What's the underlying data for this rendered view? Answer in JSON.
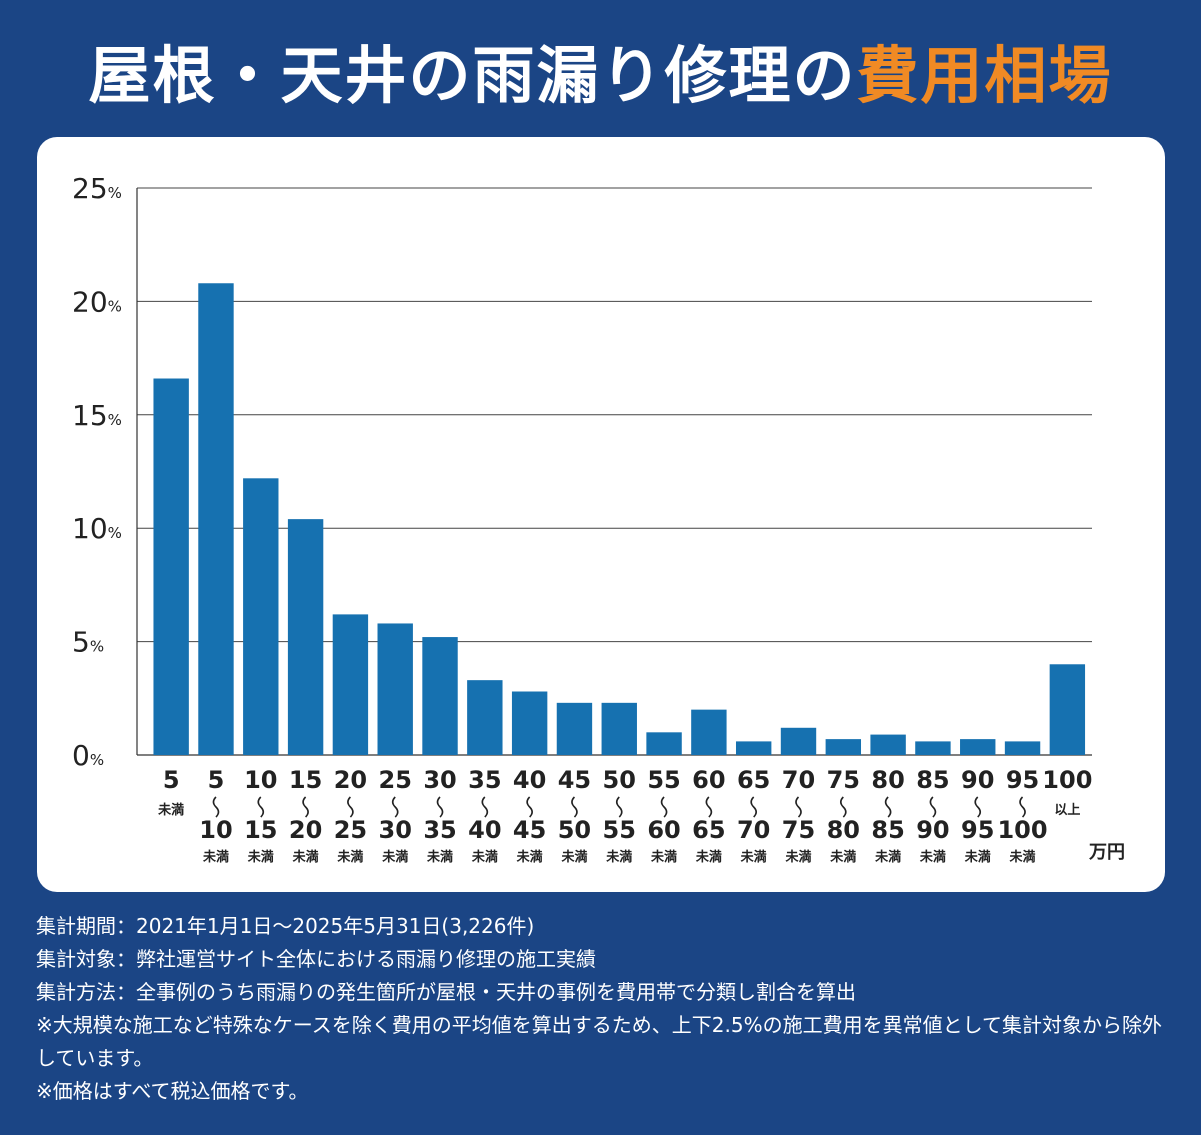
{
  "title": {
    "main": "屋根・天井の雨漏り修理の",
    "accent": "費用相場"
  },
  "colors": {
    "background": "#1b4585",
    "bar": "#1671b0",
    "accent": "#f08a24",
    "text": "#222222"
  },
  "chart_data": {
    "type": "bar",
    "ylim": [
      0,
      25
    ],
    "y_ticks": [
      0,
      5,
      10,
      15,
      20,
      25
    ],
    "y_tick_suffix": "%",
    "x_unit": "万円",
    "grid": true,
    "categories": [
      {
        "lower": "",
        "upper": "5",
        "upper_note": "未満"
      },
      {
        "lower": "5",
        "upper": "10",
        "upper_note": "未満"
      },
      {
        "lower": "10",
        "upper": "15",
        "upper_note": "未満"
      },
      {
        "lower": "15",
        "upper": "20",
        "upper_note": "未満"
      },
      {
        "lower": "20",
        "upper": "25",
        "upper_note": "未満"
      },
      {
        "lower": "25",
        "upper": "30",
        "upper_note": "未満"
      },
      {
        "lower": "30",
        "upper": "35",
        "upper_note": "未満"
      },
      {
        "lower": "35",
        "upper": "40",
        "upper_note": "未満"
      },
      {
        "lower": "40",
        "upper": "45",
        "upper_note": "未満"
      },
      {
        "lower": "45",
        "upper": "50",
        "upper_note": "未満"
      },
      {
        "lower": "50",
        "upper": "55",
        "upper_note": "未満"
      },
      {
        "lower": "55",
        "upper": "60",
        "upper_note": "未満"
      },
      {
        "lower": "60",
        "upper": "65",
        "upper_note": "未満"
      },
      {
        "lower": "65",
        "upper": "70",
        "upper_note": "未満"
      },
      {
        "lower": "70",
        "upper": "75",
        "upper_note": "未満"
      },
      {
        "lower": "75",
        "upper": "80",
        "upper_note": "未満"
      },
      {
        "lower": "80",
        "upper": "85",
        "upper_note": "未満"
      },
      {
        "lower": "85",
        "upper": "90",
        "upper_note": "未満"
      },
      {
        "lower": "90",
        "upper": "95",
        "upper_note": "未満"
      },
      {
        "lower": "95",
        "upper": "100",
        "upper_note": "未満"
      },
      {
        "lower": "100",
        "upper": "",
        "lower_note": "以上"
      }
    ],
    "values": [
      16.6,
      20.8,
      12.2,
      10.4,
      6.2,
      5.8,
      5.2,
      3.3,
      2.8,
      2.3,
      2.3,
      1.0,
      2.0,
      0.6,
      1.2,
      0.7,
      0.9,
      0.6,
      0.7,
      0.6,
      4.0
    ]
  },
  "notes": [
    "集計期間：2021年1月1日〜2025年5月31日(3,226件)",
    "集計対象：弊社運営サイト全体における雨漏り修理の施工実績",
    "集計方法：全事例のうち雨漏りの発生箇所が屋根・天井の事例を費用帯で分類し割合を算出",
    "※大規模な施工など特殊なケースを除く費用の平均値を算出するため、上下2.5%の施工費用を異常値として集計対象から除外しています。",
    "※価格はすべて税込価格です。"
  ]
}
